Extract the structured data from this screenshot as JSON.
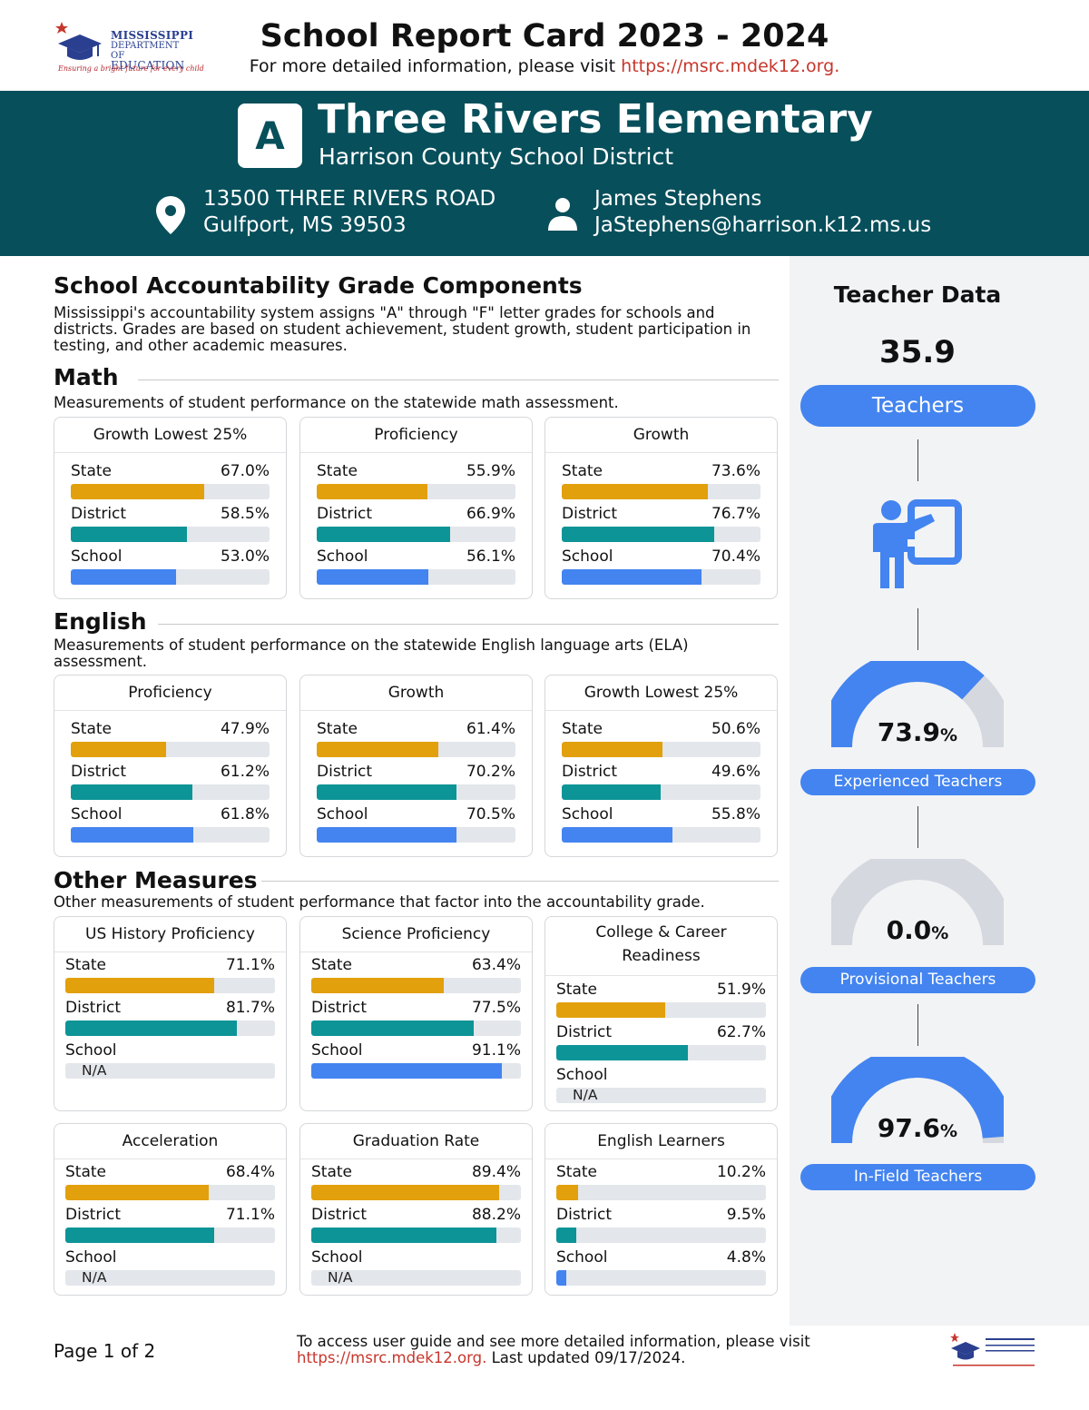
{
  "header": {
    "logo_line1": "MISSISSIPPI",
    "logo_line2": "DEPARTMENT OF",
    "logo_line3": "EDUCATION",
    "logo_tagline": "Ensuring a bright future for every child",
    "title": "School Report Card 2023 - 2024",
    "subtitle_prefix": "For more detailed information, please visit ",
    "subtitle_link": "https://msrc.mdek12.org."
  },
  "school": {
    "grade": "A",
    "name": "Three Rivers Elementary",
    "district": "Harrison County School District",
    "address_line1": "13500 THREE RIVERS ROAD",
    "address_line2": "Gulfport, MS 39503",
    "contact_name": "James Stephens",
    "contact_email": "JaStephens@harrison.k12.ms.us"
  },
  "accountability": {
    "title": "School Accountability Grade Components",
    "description": "Mississippi's accountability system assigns \"A\" through \"F\" letter grades for schools and districts. Grades are based on student achievement, student growth, student participation in testing, and other academic measures."
  },
  "math": {
    "heading": "Math",
    "description": "Measurements of student performance on the statewide math assessment.",
    "cards": [
      {
        "title": "Growth Lowest 25%",
        "rows": [
          {
            "label": "State",
            "value": "67.0%"
          },
          {
            "label": "District",
            "value": "58.5%"
          },
          {
            "label": "School",
            "value": "53.0%"
          }
        ]
      },
      {
        "title": "Proficiency",
        "rows": [
          {
            "label": "State",
            "value": "55.9%"
          },
          {
            "label": "District",
            "value": "66.9%"
          },
          {
            "label": "School",
            "value": "56.1%"
          }
        ]
      },
      {
        "title": "Growth",
        "rows": [
          {
            "label": "State",
            "value": "73.6%"
          },
          {
            "label": "District",
            "value": "76.7%"
          },
          {
            "label": "School",
            "value": "70.4%"
          }
        ]
      }
    ]
  },
  "english": {
    "heading": "English",
    "description": "Measurements of student performance on the statewide English language arts (ELA) assessment.",
    "cards": [
      {
        "title": "Proficiency",
        "rows": [
          {
            "label": "State",
            "value": "47.9%"
          },
          {
            "label": "District",
            "value": "61.2%"
          },
          {
            "label": "School",
            "value": "61.8%"
          }
        ]
      },
      {
        "title": "Growth",
        "rows": [
          {
            "label": "State",
            "value": "61.4%"
          },
          {
            "label": "District",
            "value": "70.2%"
          },
          {
            "label": "School",
            "value": "70.5%"
          }
        ]
      },
      {
        "title": "Growth Lowest 25%",
        "rows": [
          {
            "label": "State",
            "value": "50.6%"
          },
          {
            "label": "District",
            "value": "49.6%"
          },
          {
            "label": "School",
            "value": "55.8%"
          }
        ]
      }
    ]
  },
  "other": {
    "heading": "Other Measures",
    "description": "Other measurements of student performance that factor into the accountability grade.",
    "cards": [
      {
        "title": "US History Proficiency",
        "rows": [
          {
            "label": "State",
            "value": "71.1%"
          },
          {
            "label": "District",
            "value": "81.7%"
          },
          {
            "label": "School",
            "value": "",
            "na": "N/A"
          }
        ]
      },
      {
        "title": "Science Proficiency",
        "rows": [
          {
            "label": "State",
            "value": "63.4%"
          },
          {
            "label": "District",
            "value": "77.5%"
          },
          {
            "label": "School",
            "value": "91.1%"
          }
        ]
      },
      {
        "title": "College & Career Readiness",
        "rows": [
          {
            "label": "State",
            "value": "51.9%"
          },
          {
            "label": "District",
            "value": "62.7%"
          },
          {
            "label": "School",
            "value": "",
            "na": "N/A"
          }
        ]
      },
      {
        "title": "Acceleration",
        "rows": [
          {
            "label": "State",
            "value": "68.4%"
          },
          {
            "label": "District",
            "value": "71.1%"
          },
          {
            "label": "School",
            "value": "",
            "na": "N/A"
          }
        ]
      },
      {
        "title": "Graduation Rate",
        "rows": [
          {
            "label": "State",
            "value": "89.4%"
          },
          {
            "label": "District",
            "value": "88.2%"
          },
          {
            "label": "School",
            "value": "",
            "na": "N/A"
          }
        ]
      },
      {
        "title": "English Learners",
        "rows": [
          {
            "label": "State",
            "value": "10.2%"
          },
          {
            "label": "District",
            "value": "9.5%"
          },
          {
            "label": "School",
            "value": "4.8%"
          }
        ]
      }
    ]
  },
  "teacher_data": {
    "title": "Teacher Data",
    "count": "35.9",
    "count_label": "Teachers",
    "experienced_value": "73.9",
    "experienced_pct": 73.9,
    "experienced_label": "Experienced Teachers",
    "provisional_value": "0.0",
    "provisional_pct": 0.0,
    "provisional_label": "Provisional Teachers",
    "infield_value": "97.6",
    "infield_pct": 97.6,
    "infield_label": "In-Field Teachers",
    "pct_sign": "%"
  },
  "footer": {
    "page": "Page 1 of 2",
    "text_prefix": "To access user guide and see more detailed information, please visit ",
    "link": "https://msrc.mdek12.org.",
    "text_suffix": " Last updated 09/17/2024."
  },
  "colors": {
    "state": "#e2a00c",
    "district": "#0d9496",
    "school": "#4384f0",
    "banner": "#074f5b",
    "gauge_track": "#d5d8de"
  }
}
